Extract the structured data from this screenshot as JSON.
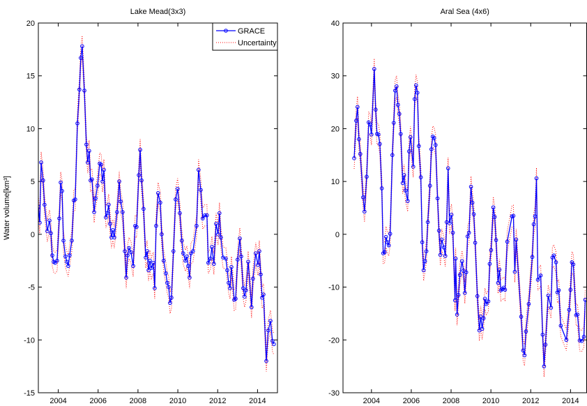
{
  "chart_data": [
    {
      "type": "line",
      "title": "Lake Mead(3x3)",
      "ylabel": "Water volume[km³]",
      "xlim": [
        2003,
        2015
      ],
      "xticks": [
        2004,
        2006,
        2008,
        2010,
        2012,
        2014
      ],
      "ylim": [
        -15,
        20
      ],
      "yticks": [
        -15,
        -10,
        -5,
        0,
        5,
        10,
        15,
        20
      ],
      "legend": "upper right",
      "x": [
        2003.0,
        2003.07,
        2003.14,
        2003.24,
        2003.31,
        2003.45,
        2003.56,
        2003.63,
        2003.7,
        2003.77,
        2003.84,
        2003.94,
        2004.05,
        2004.12,
        2004.19,
        2004.26,
        2004.36,
        2004.43,
        2004.5,
        2004.57,
        2004.68,
        2004.78,
        2004.85,
        2004.96,
        2005.06,
        2005.13,
        2005.2,
        2005.31,
        2005.41,
        2005.48,
        2005.55,
        2005.62,
        2005.69,
        2005.8,
        2005.87,
        2005.97,
        2006.08,
        2006.15,
        2006.22,
        2006.29,
        2006.39,
        2006.46,
        2006.53,
        2006.6,
        2006.67,
        2006.74,
        2006.81,
        2006.95,
        2007.06,
        2007.13,
        2007.23,
        2007.34,
        2007.41,
        2007.48,
        2007.55,
        2007.65,
        2007.76,
        2007.86,
        2007.93,
        2008.04,
        2008.11,
        2008.18,
        2008.28,
        2008.39,
        2008.46,
        2008.53,
        2008.6,
        2008.67,
        2008.77,
        2008.84,
        2008.91,
        2009.01,
        2009.12,
        2009.19,
        2009.29,
        2009.4,
        2009.47,
        2009.54,
        2009.61,
        2009.68,
        2009.78,
        2009.89,
        2009.99,
        2010.1,
        2010.2,
        2010.27,
        2010.38,
        2010.45,
        2010.52,
        2010.59,
        2010.66,
        2010.76,
        2010.94,
        2011.04,
        2011.15,
        2011.25,
        2011.36,
        2011.46,
        2011.53,
        2011.64,
        2011.71,
        2011.81,
        2011.92,
        2012.02,
        2012.09,
        2012.16,
        2012.27,
        2012.41,
        2012.48,
        2012.55,
        2012.62,
        2012.69,
        2012.83,
        2012.9,
        2013.0,
        2013.11,
        2013.18,
        2013.28,
        2013.35,
        2013.42,
        2013.53,
        2013.7,
        2013.77,
        2013.91,
        2014.02,
        2014.09,
        2014.16,
        2014.23,
        2014.3,
        2014.44,
        2014.54,
        2014.65,
        2014.75,
        2014.82
      ],
      "series": [
        {
          "name": "GRACE",
          "color": "#0000ff",
          "values": [
            2.6,
            1.1,
            6.8,
            5.1,
            2.8,
            0.3,
            1.3,
            0.1,
            -2.0,
            -2.6,
            -2.7,
            -2.5,
            1.5,
            4.9,
            4.1,
            -0.6,
            -2.1,
            -2.6,
            -3.0,
            -2.0,
            -0.6,
            3.2,
            3.3,
            10.5,
            13.7,
            16.7,
            17.8,
            13.6,
            8.5,
            6.8,
            7.9,
            5.1,
            5.2,
            2.1,
            3.4,
            4.6,
            6.7,
            6.6,
            5.0,
            6.1,
            1.6,
            2.0,
            2.8,
            1.0,
            -0.3,
            0.4,
            -0.3,
            2.1,
            5.0,
            3.1,
            2.1,
            -1.6,
            -4.1,
            -2.0,
            -1.3,
            -1.7,
            -3.0,
            0.8,
            0.7,
            5.6,
            8.0,
            5.1,
            2.4,
            -2.2,
            -1.6,
            -3.4,
            -2.5,
            -3.2,
            -2.7,
            -5.1,
            0.8,
            3.9,
            3.0,
            0.0,
            -2.5,
            -3.7,
            -4.6,
            -5.0,
            -6.5,
            -6.0,
            -1.6,
            3.3,
            4.3,
            2.0,
            -0.6,
            -1.8,
            -2.5,
            -2.1,
            -3.0,
            -4.1,
            -1.8,
            -1.6,
            0.8,
            6.1,
            4.2,
            1.5,
            1.8,
            1.8,
            -2.7,
            -2.3,
            -1.2,
            -2.8,
            1.0,
            0.0,
            2.0,
            -0.3,
            -2.2,
            -2.3,
            -3.4,
            -4.6,
            -5.1,
            -3.1,
            -6.2,
            -6.1,
            -2.4,
            -0.4,
            -2.1,
            -5.1,
            -5.9,
            -5.3,
            -2.6,
            -6.9,
            -4.2,
            -1.8,
            -2.9,
            -1.6,
            -3.8,
            -6.0,
            -5.7,
            -12.0,
            -9.1,
            -8.2,
            -10.1,
            -10.4
          ]
        },
        {
          "name": "Uncertainty",
          "color": "#ff0000",
          "value": 1.0
        }
      ]
    },
    {
      "type": "line",
      "title": "Aral Sea (4x6)",
      "xlim": [
        2002.57,
        2014.81
      ],
      "xticks": [
        2004,
        2006,
        2008,
        2010,
        2012,
        2014
      ],
      "ylim": [
        -30,
        40
      ],
      "yticks": [
        -30,
        -20,
        -10,
        0,
        10,
        20,
        30,
        40
      ],
      "x": [
        2003.13,
        2003.23,
        2003.3,
        2003.37,
        2003.44,
        2003.58,
        2003.65,
        2003.76,
        2003.86,
        2003.93,
        2004.0,
        2004.14,
        2004.21,
        2004.28,
        2004.35,
        2004.42,
        2004.52,
        2004.59,
        2004.66,
        2004.73,
        2004.8,
        2004.87,
        2004.94,
        2005.05,
        2005.12,
        2005.19,
        2005.26,
        2005.33,
        2005.4,
        2005.47,
        2005.57,
        2005.64,
        2005.71,
        2005.82,
        2005.89,
        2005.96,
        2006.1,
        2006.17,
        2006.24,
        2006.31,
        2006.38,
        2006.48,
        2006.55,
        2006.62,
        2006.69,
        2006.76,
        2006.83,
        2006.94,
        2007.01,
        2007.08,
        2007.15,
        2007.22,
        2007.32,
        2007.39,
        2007.46,
        2007.53,
        2007.64,
        2007.71,
        2007.78,
        2007.85,
        2007.92,
        2008.02,
        2008.09,
        2008.2,
        2008.23,
        2008.3,
        2008.37,
        2008.44,
        2008.55,
        2008.62,
        2008.69,
        2008.76,
        2008.83,
        2008.9,
        2009.0,
        2009.07,
        2009.14,
        2009.21,
        2009.32,
        2009.42,
        2009.49,
        2009.56,
        2009.63,
        2009.7,
        2009.77,
        2009.87,
        2009.94,
        2010.01,
        2010.12,
        2010.19,
        2010.26,
        2010.36,
        2010.43,
        2010.5,
        2010.57,
        2010.64,
        2010.71,
        2010.82,
        2011.06,
        2011.13,
        2011.2,
        2011.27,
        2011.52,
        2011.62,
        2011.69,
        2011.76,
        2011.9,
        2012.08,
        2012.15,
        2012.22,
        2012.29,
        2012.36,
        2012.5,
        2012.6,
        2012.67,
        2012.74,
        2012.88,
        2013.02,
        2013.09,
        2013.16,
        2013.27,
        2013.34,
        2013.41,
        2013.51,
        2013.79,
        2013.93,
        2014.0,
        2014.07,
        2014.14,
        2014.28,
        2014.35,
        2014.46,
        2014.56,
        2014.67,
        2014.74
      ],
      "series": [
        {
          "name": "GRACE",
          "color": "#0000ff",
          "values": [
            14.4,
            21.5,
            24.1,
            18.0,
            15.2,
            7.0,
            4.3,
            10.9,
            21.2,
            20.8,
            18.9,
            31.3,
            23.6,
            19.0,
            18.9,
            17.1,
            8.7,
            -3.6,
            -3.4,
            -0.5,
            -1.5,
            -2.1,
            0.1,
            15.0,
            21.1,
            27.2,
            28.0,
            24.5,
            22.8,
            19.0,
            9.7,
            11.2,
            8.3,
            6.3,
            15.7,
            18.4,
            12.8,
            25.6,
            28.2,
            26.8,
            16.7,
            10.8,
            -1.5,
            -6.8,
            -5.1,
            -3.2,
            2.3,
            9.2,
            16.1,
            18.5,
            18.2,
            16.9,
            6.8,
            0.7,
            -3.9,
            -1.0,
            -2.5,
            -4.1,
            2.3,
            12.5,
            2.1,
            3.7,
            0.3,
            -12.5,
            -4.6,
            -15.2,
            -11.5,
            -7.7,
            -5.1,
            -6.9,
            -11.1,
            -7.2,
            -0.4,
            0.3,
            9.0,
            6.0,
            3.8,
            -1.6,
            -11.7,
            -18.2,
            -15.6,
            -17.9,
            -15.9,
            -12.2,
            -13.2,
            -12.7,
            -5.6,
            -3.0,
            5.1,
            3.3,
            -1.1,
            -9.2,
            -6.7,
            -10.6,
            -10.4,
            -10.1,
            -10.5,
            -1.4,
            3.4,
            3.5,
            -7.1,
            -1.0,
            -15.6,
            -22.0,
            -22.9,
            -18.4,
            -13.2,
            -4.3,
            1.9,
            3.4,
            10.6,
            -8.6,
            -7.8,
            -19.0,
            -25.0,
            -20.9,
            -11.6,
            -13.9,
            -4.4,
            -4.0,
            -5.3,
            -11.0,
            -10.6,
            -17.3,
            -20.0,
            -14.3,
            -10.5,
            -5.3,
            -5.7,
            -15.3,
            -15.2,
            -20.1,
            -20.2,
            -19.4,
            -12.4
          ]
        },
        {
          "name": "Uncertainty",
          "color": "#ff0000",
          "value": 2.0
        }
      ]
    }
  ]
}
